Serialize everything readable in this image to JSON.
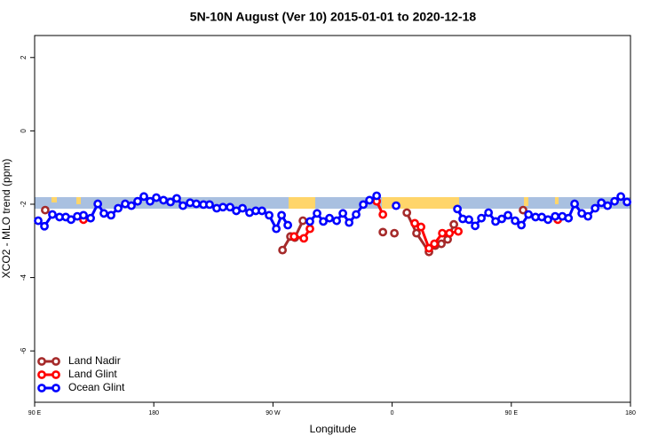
{
  "chart_data": {
    "type": "line",
    "title": "5N-10N August (Ver 10)   2015-01-01 to 2020-12-18",
    "x_label": "Longitude",
    "y_label": "XCO2 - MLO trend (ppm)",
    "xlim": [
      90,
      540
    ],
    "xticks": [
      {
        "value": 90,
        "label": "90 E"
      },
      180,
      {
        "value": 270,
        "label": "90 W"
      },
      {
        "value": 360,
        "label": "0"
      },
      {
        "value": 450,
        "label": "90 E"
      },
      {
        "value": 540,
        "label": "180"
      }
    ],
    "ylim": [
      -7.4,
      2.6
    ],
    "yticks": [
      2,
      0,
      -2,
      -4,
      -6
    ],
    "legend": "bottom-left",
    "series": [
      {
        "name": "Land Nadir",
        "color": "#a52a2a",
        "x": [
          98.0,
          null,
          277.2,
          283.2,
          286.5,
          292.6,
          null,
          353.0,
          null,
          361.7,
          null,
          371.1,
          378.4,
          387.8,
          392.5,
          397.2,
          401.9,
          406.6,
          null,
          458.9
        ],
        "values": [
          -2.16,
          null,
          -3.25,
          -2.88,
          -2.91,
          -2.45,
          null,
          -2.76,
          null,
          -2.79,
          null,
          -2.23,
          -2.79,
          -3.3,
          -3.13,
          -3.08,
          -2.96,
          -2.55,
          null,
          -2.16
        ]
      },
      {
        "name": "Land Glint",
        "color": "#ff0000",
        "x": [
          126.9,
          null,
          285.9,
          293.3,
          297.9,
          null,
          348.3,
          353.0,
          null,
          377.1,
          381.8,
          387.8,
          391.9,
          397.9,
          403.3,
          410.0,
          null,
          485.1
        ],
        "values": [
          -2.42,
          null,
          -2.88,
          -2.93,
          -2.67,
          null,
          -1.92,
          -2.28,
          null,
          -2.52,
          -2.62,
          -3.2,
          -3.08,
          -2.79,
          -2.79,
          -2.74,
          null,
          -2.42
        ]
      },
      {
        "name": "Ocean Glint",
        "color": "#0000ff",
        "x": [
          92.7,
          97.4,
          103.4,
          108.8,
          113.5,
          117.5,
          122.2,
          126.9,
          132.3,
          137.7,
          142.3,
          147.7,
          153.1,
          158.4,
          163.1,
          167.8,
          172.5,
          177.2,
          181.9,
          187.3,
          192.6,
          197.3,
          202.0,
          207.4,
          212.1,
          217.5,
          222.1,
          227.5,
          232.2,
          237.6,
          242.3,
          247.0,
          252.3,
          257.0,
          261.7,
          267.1,
          272.5,
          276.5,
          281.2,
          null,
          297.9,
          303.3,
          308.0,
          312.7,
          318.1,
          322.8,
          327.5,
          332.8,
          338.2,
          342.9,
          348.3,
          null,
          363.0,
          null,
          409.3,
          413.3,
          418.0,
          422.7,
          427.4,
          432.8,
          438.1,
          442.8,
          447.5,
          452.9,
          457.6,
          463.0,
          468.3,
          473.0,
          477.7,
          483.1,
          488.5,
          493.2,
          497.8,
          503.2,
          507.9,
          513.3,
          518.0,
          522.7,
          528.0,
          532.7,
          537.4
        ],
        "values": [
          -2.45,
          -2.6,
          -2.28,
          -2.35,
          -2.35,
          -2.42,
          -2.33,
          -2.3,
          -2.38,
          -1.99,
          -2.25,
          -2.3,
          -2.11,
          -1.99,
          -2.04,
          -1.92,
          -1.79,
          -1.92,
          -1.82,
          -1.89,
          -1.94,
          -1.84,
          -2.04,
          -1.96,
          -1.99,
          -2.01,
          -2.01,
          -2.11,
          -2.08,
          -2.08,
          -2.18,
          -2.11,
          -2.23,
          -2.18,
          -2.18,
          -2.3,
          -2.67,
          -2.3,
          -2.57,
          null,
          -2.47,
          -2.25,
          -2.47,
          -2.38,
          -2.45,
          -2.25,
          -2.5,
          -2.28,
          -2.01,
          -1.89,
          -1.77,
          null,
          -2.04,
          null,
          -2.13,
          -2.4,
          -2.42,
          -2.59,
          -2.38,
          -2.23,
          -2.47,
          -2.4,
          -2.3,
          -2.45,
          -2.57,
          -2.28,
          -2.35,
          -2.35,
          -2.42,
          -2.33,
          -2.33,
          -2.38,
          -1.99,
          -2.25,
          -2.33,
          -2.11,
          -1.96,
          -2.04,
          -1.92,
          -1.79,
          -1.94
        ]
      }
    ]
  }
}
